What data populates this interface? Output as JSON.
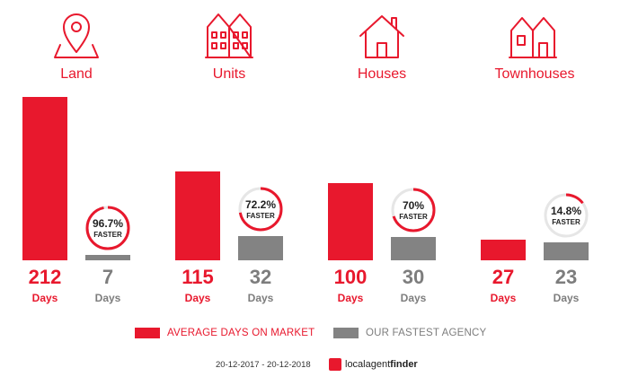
{
  "chart_data": {
    "type": "bar",
    "categories": [
      "Land",
      "Units",
      "Houses",
      "Townhouses"
    ],
    "series": [
      {
        "name": "AVERAGE DAYS ON MARKET",
        "values": [
          212,
          115,
          100,
          27
        ]
      },
      {
        "name": "OUR FASTEST AGENCY",
        "values": [
          7,
          32,
          30,
          23
        ]
      }
    ],
    "unit_label": "Days",
    "faster_pct": [
      "96.7%",
      "72.2%",
      "70%",
      "14.8%"
    ],
    "faster_fraction": [
      0.967,
      0.722,
      0.7,
      0.148
    ],
    "faster_word": "FASTER",
    "ylim": [
      0,
      212
    ],
    "colors": {
      "avg": "#e8182d",
      "agency": "#838383",
      "ring_track": "#e6e6e6"
    },
    "icons": [
      "map-pin-icon",
      "apartment-building-icon",
      "house-icon",
      "townhouse-icon"
    ]
  },
  "legend": {
    "avg_label": "AVERAGE DAYS ON MARKET",
    "agency_label": "OUR FASTEST AGENCY"
  },
  "footer": {
    "date_range": "20-12-2017 - 20-12-2018",
    "brand_a": "localagent",
    "brand_b": "finder"
  }
}
